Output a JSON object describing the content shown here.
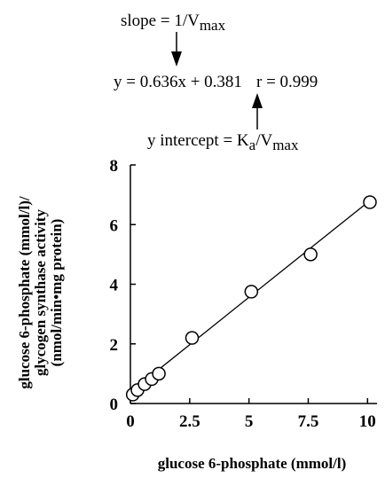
{
  "chart_data": {
    "type": "scatter",
    "annotations": {
      "slope_label": "slope = 1/V",
      "slope_sub": "max",
      "equation": "y = 0.636x + 0.381",
      "r_value": "r = 0.999",
      "intercept_label": "y intercept = K",
      "intercept_sub_a": "a",
      "intercept_mid": "/V",
      "intercept_sub_max": "max"
    },
    "xlabel": "glucose 6-phosphate (mmol/l)",
    "ylabel_lines": [
      "glucose 6-phosphate (mmol/l)/",
      "glycogen synthase activity",
      "(nmol/min•mg protein)"
    ],
    "xlim": [
      0,
      10.4
    ],
    "ylim": [
      0,
      8
    ],
    "x_ticks": [
      0,
      2.5,
      5,
      7.5,
      10
    ],
    "x_tick_labels": [
      "0",
      "2.5",
      "5",
      "7.5",
      "10"
    ],
    "y_ticks": [
      0,
      2,
      4,
      6,
      8
    ],
    "y_tick_labels": [
      "0",
      "2",
      "4",
      "6",
      "8"
    ],
    "points": [
      {
        "x": 0.1,
        "y": 0.3
      },
      {
        "x": 0.3,
        "y": 0.45
      },
      {
        "x": 0.6,
        "y": 0.65
      },
      {
        "x": 0.9,
        "y": 0.82
      },
      {
        "x": 1.2,
        "y": 1.0
      },
      {
        "x": 2.6,
        "y": 2.2
      },
      {
        "x": 5.1,
        "y": 3.75
      },
      {
        "x": 7.6,
        "y": 5.0
      },
      {
        "x": 10.1,
        "y": 6.75
      }
    ],
    "fit_line": {
      "slope": 0.636,
      "intercept": 0.381,
      "x_range": [
        0,
        10.1
      ]
    },
    "grid": false,
    "marker": "open-circle"
  }
}
